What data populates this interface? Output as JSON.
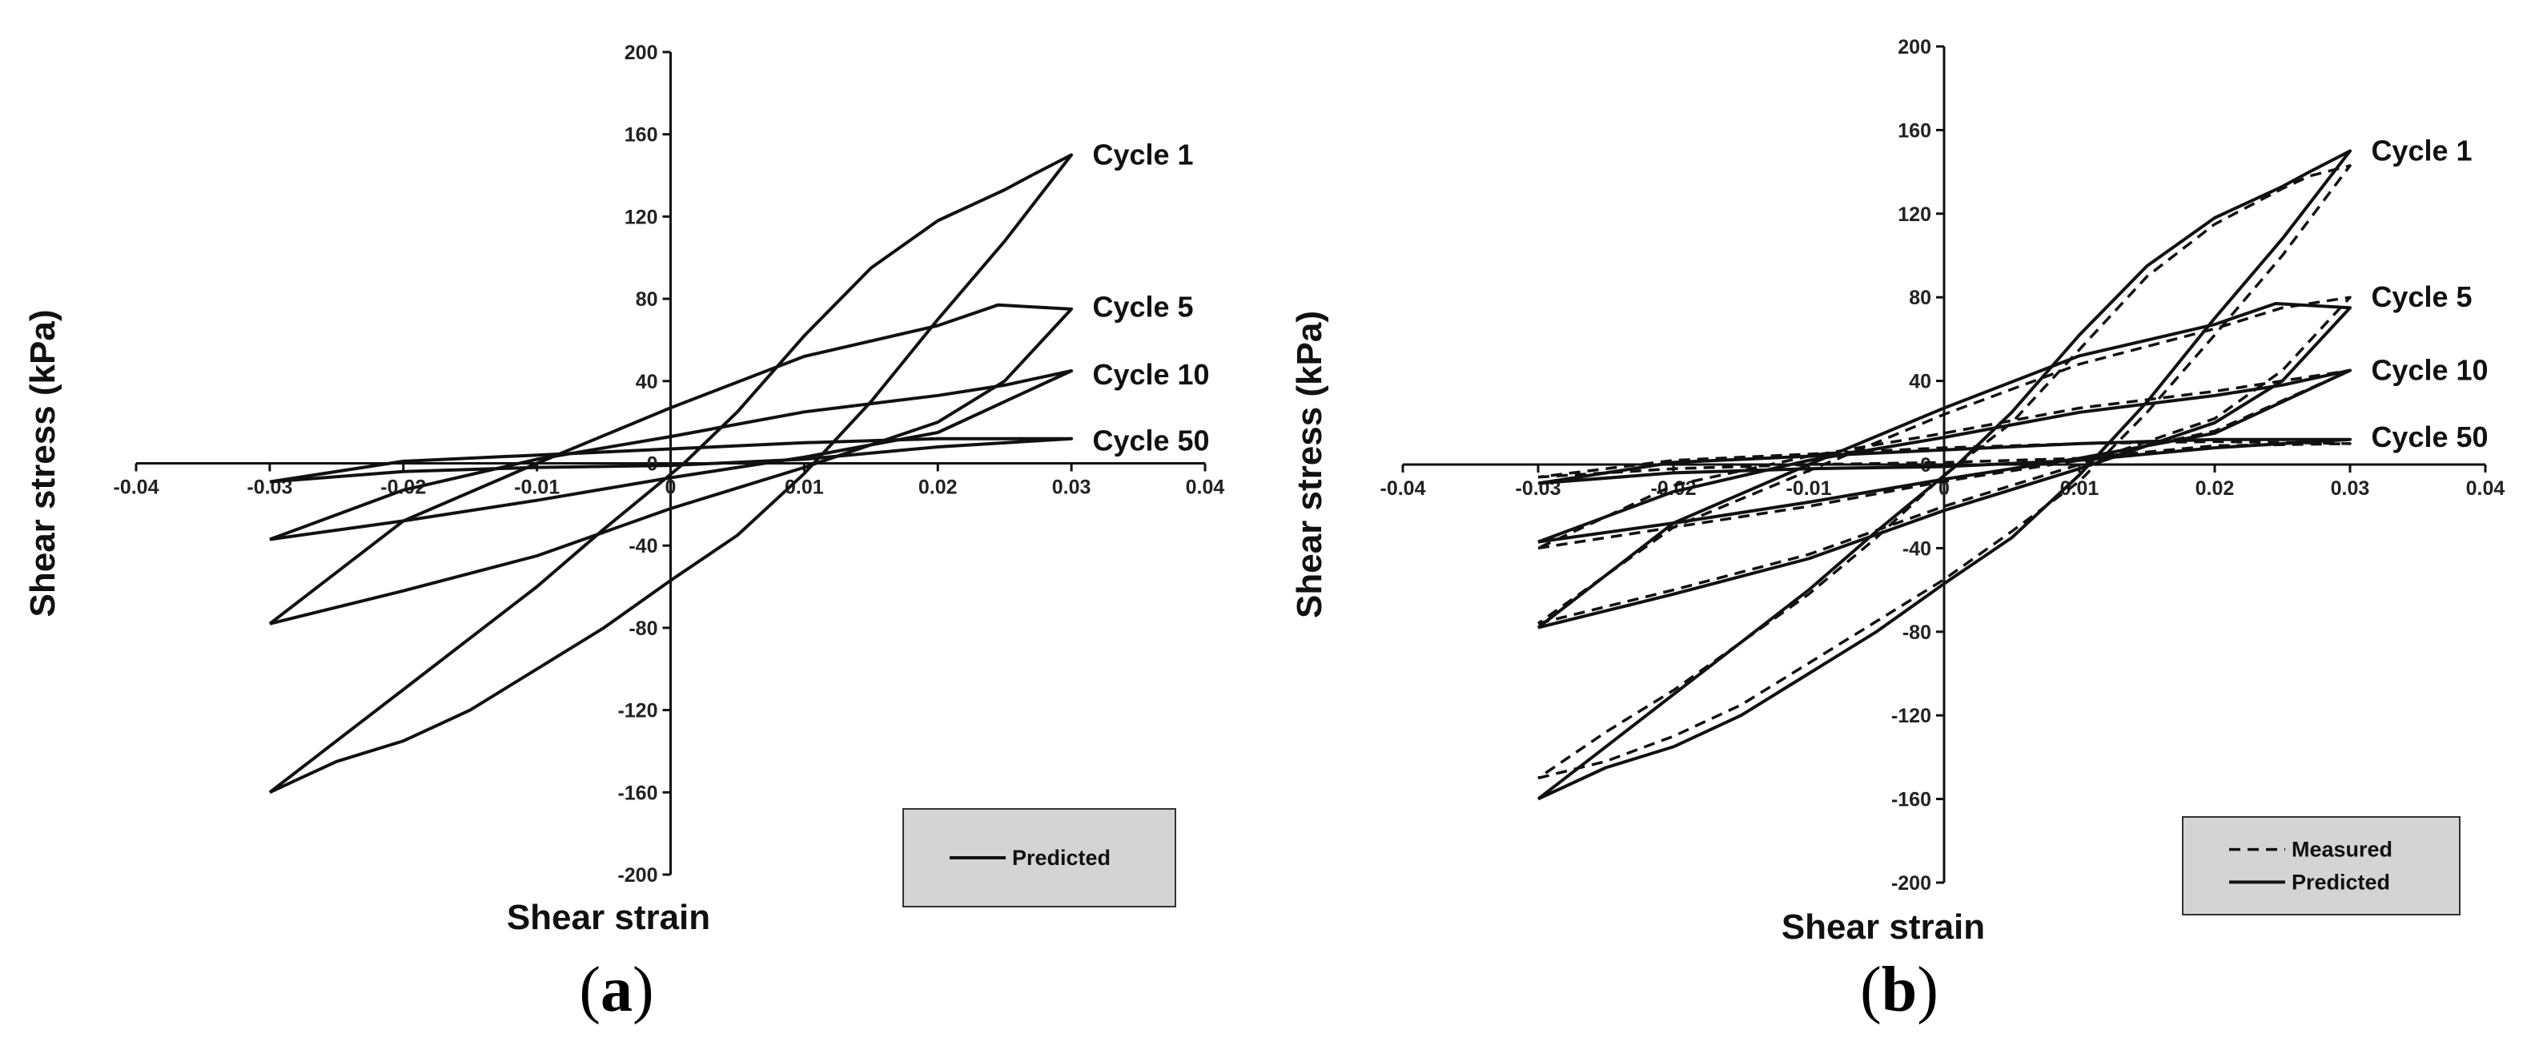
{
  "chart_data": [
    {
      "type": "line",
      "panel_label": "a",
      "xlabel": "Shear strain",
      "ylabel": "Shear stress (kPa)",
      "xlim": [
        -0.04,
        0.04
      ],
      "ylim": [
        -200,
        200
      ],
      "x_ticks": [
        "-0.04",
        "-0.03",
        "-0.02",
        "-0.01",
        "0",
        "0.01",
        "0.02",
        "0.03",
        "0.04"
      ],
      "y_ticks": [
        "200",
        "160",
        "120",
        "80",
        "40",
        "0",
        "-40",
        "-80",
        "-120",
        "-160",
        "-200"
      ],
      "legend": [
        "Predicted"
      ],
      "legend_position": "bottom-right",
      "cycle_labels": [
        {
          "text": "Cycle 1",
          "x": 0.0305,
          "y": 150
        },
        {
          "text": "Cycle 5",
          "x": 0.0305,
          "y": 76
        },
        {
          "text": "Cycle 10",
          "x": 0.0305,
          "y": 43
        },
        {
          "text": "Cycle 50",
          "x": 0.0305,
          "y": 11
        }
      ],
      "series": [
        {
          "name": "Cycle 1",
          "style": "solid",
          "points": [
            [
              -0.03,
              -160
            ],
            [
              -0.025,
              -145
            ],
            [
              -0.02,
              -135
            ],
            [
              -0.015,
              -120
            ],
            [
              -0.01,
              -100
            ],
            [
              -0.005,
              -80
            ],
            [
              0,
              -57
            ],
            [
              0.005,
              -35
            ],
            [
              0.01,
              -5
            ],
            [
              0.015,
              30
            ],
            [
              0.02,
              70
            ],
            [
              0.025,
              108
            ],
            [
              0.03,
              150
            ],
            [
              0.027,
              140
            ],
            [
              0.025,
              133
            ],
            [
              0.02,
              118
            ],
            [
              0.015,
              95
            ],
            [
              0.01,
              62
            ],
            [
              0.005,
              25
            ],
            [
              0.001,
              0
            ],
            [
              -0.005,
              -32
            ],
            [
              -0.01,
              -60
            ],
            [
              -0.015,
              -85
            ],
            [
              -0.02,
              -110
            ],
            [
              -0.025,
              -135
            ],
            [
              -0.03,
              -160
            ]
          ]
        },
        {
          "name": "Cycle 5",
          "style": "solid",
          "points": [
            [
              -0.03,
              -78
            ],
            [
              -0.02,
              -62
            ],
            [
              -0.01,
              -45
            ],
            [
              0,
              -22
            ],
            [
              0.01,
              -2
            ],
            [
              0.02,
              20
            ],
            [
              0.025,
              40
            ],
            [
              0.03,
              75
            ],
            [
              0.0245,
              77
            ],
            [
              0.02,
              67
            ],
            [
              0.01,
              52
            ],
            [
              0,
              27
            ],
            [
              -0.01,
              0
            ],
            [
              -0.02,
              -28
            ],
            [
              -0.03,
              -78
            ]
          ]
        },
        {
          "name": "Cycle 10",
          "style": "solid",
          "points": [
            [
              -0.03,
              -37
            ],
            [
              -0.02,
              -28
            ],
            [
              -0.01,
              -18
            ],
            [
              0,
              -7
            ],
            [
              0.01,
              3
            ],
            [
              0.02,
              15
            ],
            [
              0.03,
              45
            ],
            [
              0.025,
              38
            ],
            [
              0.02,
              33
            ],
            [
              0.01,
              25
            ],
            [
              0,
              13
            ],
            [
              -0.01,
              2
            ],
            [
              -0.02,
              -13
            ],
            [
              -0.03,
              -37
            ]
          ]
        },
        {
          "name": "Cycle 50",
          "style": "solid",
          "points": [
            [
              -0.03,
              -9
            ],
            [
              -0.02,
              -4
            ],
            [
              -0.01,
              -2
            ],
            [
              0,
              -1
            ],
            [
              0.01,
              2
            ],
            [
              0.02,
              8
            ],
            [
              0.03,
              12
            ],
            [
              0.02,
              12
            ],
            [
              0.01,
              10
            ],
            [
              0,
              7
            ],
            [
              -0.01,
              4
            ],
            [
              -0.02,
              1
            ],
            [
              -0.03,
              -9
            ]
          ]
        }
      ]
    },
    {
      "type": "line",
      "panel_label": "b",
      "xlabel": "Shear strain",
      "ylabel": "Shear stress (kPa)",
      "xlim": [
        -0.04,
        0.04
      ],
      "ylim": [
        -200,
        200
      ],
      "x_ticks": [
        "-0.04",
        "-0.03",
        "-0.02",
        "-0.01",
        "0",
        "0.01",
        "0.02",
        "0.03",
        "0.04"
      ],
      "y_ticks": [
        "200",
        "160",
        "120",
        "80",
        "40",
        "0",
        "-40",
        "-80",
        "-120",
        "-160",
        "-200"
      ],
      "legend": [
        "Measured",
        "Predicted"
      ],
      "legend_position": "bottom-right",
      "cycle_labels": [
        {
          "text": "Cycle 1",
          "x": 0.0305,
          "y": 150
        },
        {
          "text": "Cycle 5",
          "x": 0.0305,
          "y": 80
        },
        {
          "text": "Cycle 10",
          "x": 0.0305,
          "y": 45
        },
        {
          "text": "Cycle 50",
          "x": 0.0305,
          "y": 13
        }
      ],
      "series": [
        {
          "name": "Cycle 1 Predicted",
          "style": "solid",
          "points": [
            [
              -0.03,
              -160
            ],
            [
              -0.025,
              -145
            ],
            [
              -0.02,
              -135
            ],
            [
              -0.015,
              -120
            ],
            [
              -0.01,
              -100
            ],
            [
              -0.005,
              -80
            ],
            [
              0,
              -57
            ],
            [
              0.005,
              -35
            ],
            [
              0.01,
              -5
            ],
            [
              0.015,
              30
            ],
            [
              0.02,
              70
            ],
            [
              0.025,
              108
            ],
            [
              0.03,
              150
            ],
            [
              0.027,
              140
            ],
            [
              0.025,
              133
            ],
            [
              0.02,
              118
            ],
            [
              0.015,
              95
            ],
            [
              0.01,
              62
            ],
            [
              0.005,
              25
            ],
            [
              0.001,
              0
            ],
            [
              -0.005,
              -32
            ],
            [
              -0.01,
              -60
            ],
            [
              -0.015,
              -85
            ],
            [
              -0.02,
              -110
            ],
            [
              -0.025,
              -135
            ],
            [
              -0.03,
              -160
            ]
          ]
        },
        {
          "name": "Cycle 1 Measured",
          "style": "dashed",
          "points": [
            [
              -0.03,
              -150
            ],
            [
              -0.025,
              -142
            ],
            [
              -0.02,
              -130
            ],
            [
              -0.015,
              -115
            ],
            [
              -0.01,
              -95
            ],
            [
              -0.005,
              -75
            ],
            [
              0,
              -55
            ],
            [
              0.005,
              -32
            ],
            [
              0.01,
              -8
            ],
            [
              0.015,
              25
            ],
            [
              0.02,
              62
            ],
            [
              0.025,
              100
            ],
            [
              0.03,
              143
            ],
            [
              0.027,
              138
            ],
            [
              0.025,
              132
            ],
            [
              0.02,
              115
            ],
            [
              0.015,
              90
            ],
            [
              0.01,
              55
            ],
            [
              0.005,
              20
            ],
            [
              0,
              -5
            ],
            [
              -0.005,
              -35
            ],
            [
              -0.01,
              -62
            ],
            [
              -0.015,
              -85
            ],
            [
              -0.02,
              -108
            ],
            [
              -0.025,
              -128
            ],
            [
              -0.03,
              -150
            ]
          ]
        },
        {
          "name": "Cycle 5 Predicted",
          "style": "solid",
          "points": [
            [
              -0.03,
              -78
            ],
            [
              -0.02,
              -62
            ],
            [
              -0.01,
              -45
            ],
            [
              0,
              -22
            ],
            [
              0.01,
              -2
            ],
            [
              0.02,
              20
            ],
            [
              0.025,
              40
            ],
            [
              0.03,
              75
            ],
            [
              0.0245,
              77
            ],
            [
              0.02,
              67
            ],
            [
              0.01,
              52
            ],
            [
              0,
              27
            ],
            [
              -0.01,
              0
            ],
            [
              -0.02,
              -28
            ],
            [
              -0.03,
              -78
            ]
          ]
        },
        {
          "name": "Cycle 5 Measured",
          "style": "dashed",
          "points": [
            [
              -0.03,
              -76
            ],
            [
              -0.02,
              -60
            ],
            [
              -0.01,
              -43
            ],
            [
              0,
              -20
            ],
            [
              0.01,
              0
            ],
            [
              0.02,
              22
            ],
            [
              0.025,
              45
            ],
            [
              0.03,
              80
            ],
            [
              0.025,
              75
            ],
            [
              0.02,
              65
            ],
            [
              0.01,
              48
            ],
            [
              0,
              24
            ],
            [
              -0.01,
              -3
            ],
            [
              -0.02,
              -30
            ],
            [
              -0.03,
              -76
            ]
          ]
        },
        {
          "name": "Cycle 10 Predicted",
          "style": "solid",
          "points": [
            [
              -0.03,
              -37
            ],
            [
              -0.02,
              -28
            ],
            [
              -0.01,
              -18
            ],
            [
              0,
              -7
            ],
            [
              0.01,
              3
            ],
            [
              0.02,
              15
            ],
            [
              0.03,
              45
            ],
            [
              0.025,
              38
            ],
            [
              0.02,
              33
            ],
            [
              0.01,
              25
            ],
            [
              0,
              13
            ],
            [
              -0.01,
              2
            ],
            [
              -0.02,
              -13
            ],
            [
              -0.03,
              -37
            ]
          ]
        },
        {
          "name": "Cycle 10 Measured",
          "style": "dashed",
          "points": [
            [
              -0.03,
              -40
            ],
            [
              -0.02,
              -30
            ],
            [
              -0.01,
              -20
            ],
            [
              0,
              -8
            ],
            [
              0.01,
              2
            ],
            [
              0.02,
              16
            ],
            [
              0.03,
              45
            ],
            [
              0.025,
              40
            ],
            [
              0.02,
              35
            ],
            [
              0.01,
              27
            ],
            [
              0,
              15
            ],
            [
              -0.01,
              4
            ],
            [
              -0.02,
              -10
            ],
            [
              -0.03,
              -40
            ]
          ]
        },
        {
          "name": "Cycle 50 Predicted",
          "style": "solid",
          "points": [
            [
              -0.03,
              -9
            ],
            [
              -0.02,
              -4
            ],
            [
              -0.01,
              -2
            ],
            [
              0,
              -1
            ],
            [
              0.01,
              2
            ],
            [
              0.02,
              8
            ],
            [
              0.03,
              12
            ],
            [
              0.02,
              12
            ],
            [
              0.01,
              10
            ],
            [
              0,
              7
            ],
            [
              -0.01,
              4
            ],
            [
              -0.02,
              1
            ],
            [
              -0.03,
              -9
            ]
          ]
        },
        {
          "name": "Cycle 50 Measured",
          "style": "dashed",
          "points": [
            [
              -0.03,
              -6
            ],
            [
              -0.02,
              -2
            ],
            [
              -0.01,
              0
            ],
            [
              0,
              1
            ],
            [
              0.01,
              3
            ],
            [
              0.02,
              9
            ],
            [
              0.03,
              10
            ],
            [
              0.02,
              11
            ],
            [
              0.01,
              10
            ],
            [
              0,
              8
            ],
            [
              -0.01,
              5
            ],
            [
              -0.02,
              2
            ],
            [
              -0.03,
              -6
            ]
          ]
        }
      ]
    }
  ]
}
